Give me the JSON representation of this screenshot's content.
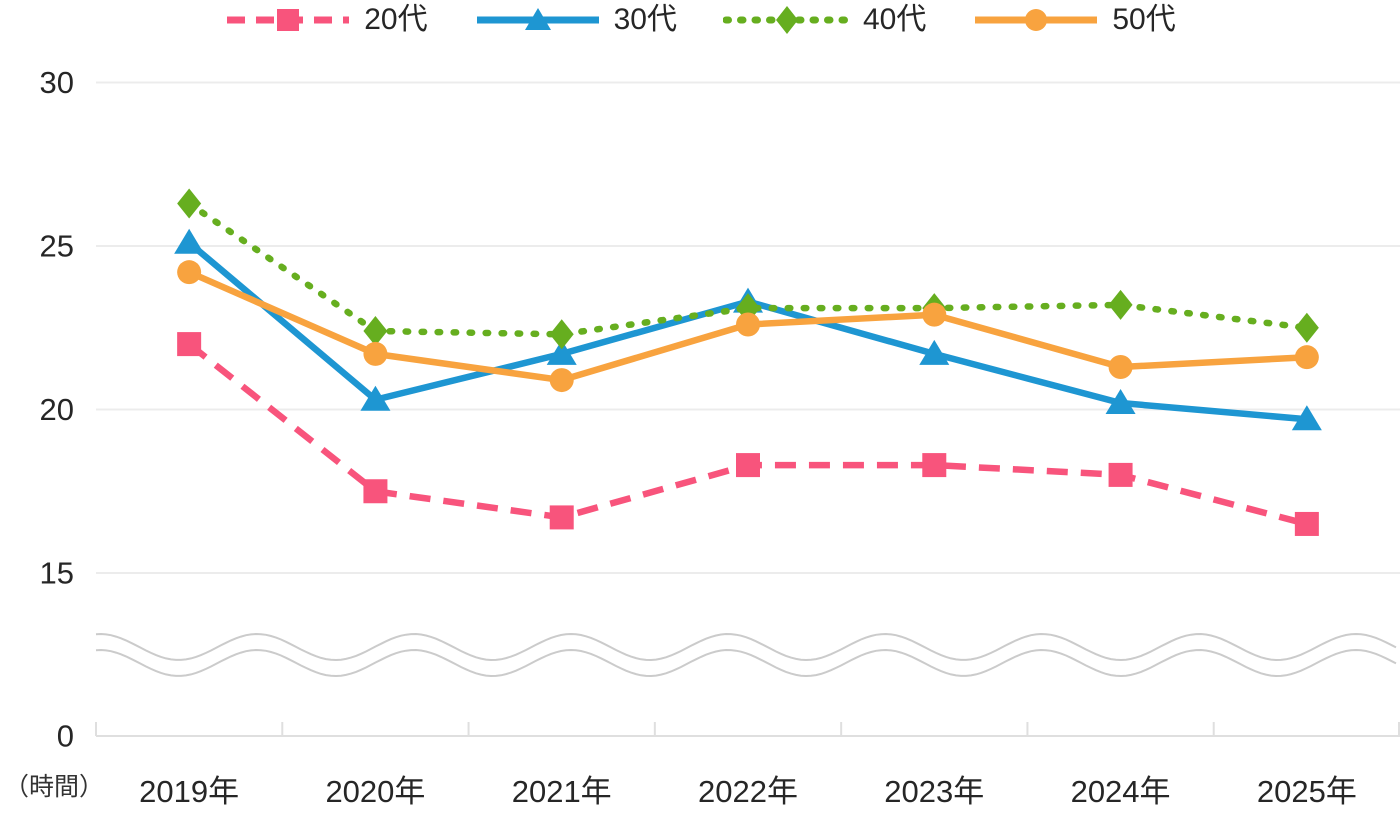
{
  "chart_data": {
    "type": "line",
    "title": "",
    "xlabel": "",
    "ylabel": "",
    "unit_label": "（時間）",
    "legend_position": "top",
    "grid": "horizontal",
    "categories": [
      "2019年",
      "2020年",
      "2021年",
      "2022年",
      "2023年",
      "2024年",
      "2025年"
    ],
    "series": [
      {
        "id": "age-20s",
        "name": "20代",
        "color": "#F8547C",
        "line_style": "dashed",
        "marker": "square",
        "values": [
          22.0,
          17.5,
          16.7,
          18.3,
          18.3,
          18.0,
          16.5
        ]
      },
      {
        "id": "age-30s",
        "name": "30代",
        "color": "#1E96D2",
        "line_style": "solid",
        "marker": "triangle",
        "values": [
          25.1,
          20.3,
          21.7,
          23.3,
          21.7,
          20.2,
          19.7
        ]
      },
      {
        "id": "age-40s",
        "name": "40代",
        "color": "#66AE1F",
        "line_style": "dotted",
        "marker": "diamond",
        "values": [
          26.3,
          22.4,
          22.3,
          23.1,
          23.1,
          23.2,
          22.5
        ]
      },
      {
        "id": "age-50s",
        "name": "50代",
        "color": "#F8A33F",
        "line_style": "solid",
        "marker": "circle",
        "values": [
          24.2,
          21.7,
          20.9,
          22.6,
          22.9,
          21.3,
          21.6
        ]
      }
    ],
    "y_axis": {
      "tick_values": [
        30,
        25,
        20,
        15,
        0
      ],
      "visible_range": [
        15,
        30
      ],
      "has_axis_break": true
    }
  },
  "style": {
    "grid_color": "#ECECEC",
    "axis_color": "#DFDFDF",
    "break_wave_color": "#CBCBCB",
    "text_color": "#262626"
  }
}
